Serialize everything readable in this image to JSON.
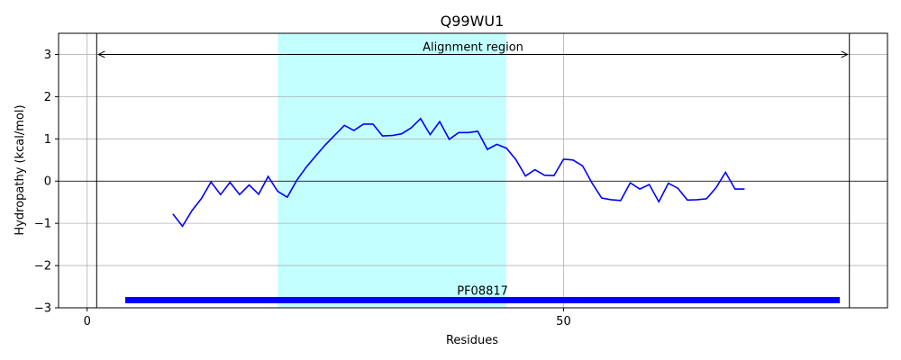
{
  "chart_data": {
    "type": "line",
    "title": "Q99WU1",
    "xlabel": "Residues",
    "ylabel": "Hydropathy (kcal/mol)",
    "xlim": [
      -3,
      84
    ],
    "ylim": [
      -3,
      3.5
    ],
    "x_ticks": [
      0,
      50
    ],
    "y_ticks": [
      -3,
      -2,
      -1,
      0,
      1,
      2,
      3
    ],
    "x_tick_labels": [
      "0",
      "50"
    ],
    "y_tick_labels": [
      "−3",
      "−2",
      "−1",
      "0",
      "1",
      "2",
      "3"
    ],
    "grid": true,
    "colors": {
      "line": "#0000ff",
      "highlight": "#c4ffff",
      "domain": "#0000ff"
    },
    "series": [
      {
        "x": [
          9,
          10,
          11,
          12,
          13,
          14,
          15,
          16,
          17,
          18,
          19,
          20,
          21,
          22,
          23,
          24,
          25,
          26,
          27,
          28,
          29,
          30,
          31,
          32,
          33,
          34,
          35,
          36,
          37,
          38,
          39,
          40,
          41,
          42,
          43,
          44,
          45,
          46,
          47,
          48,
          49,
          50,
          51,
          52,
          53,
          54,
          55,
          56,
          57,
          58,
          59,
          60,
          61,
          62,
          63,
          64,
          65,
          66,
          67,
          68,
          69
        ],
        "y": [
          -0.78,
          -1.07,
          -0.7,
          -0.41,
          -0.02,
          -0.32,
          -0.03,
          -0.32,
          -0.09,
          -0.31,
          0.11,
          -0.24,
          -0.38,
          0.02,
          0.33,
          0.6,
          0.86,
          1.09,
          1.32,
          1.2,
          1.35,
          1.35,
          1.07,
          1.08,
          1.12,
          1.26,
          1.48,
          1.1,
          1.41,
          0.99,
          1.15,
          1.15,
          1.18,
          0.75,
          0.87,
          0.78,
          0.51,
          0.12,
          0.27,
          0.14,
          0.13,
          0.52,
          0.5,
          0.36,
          -0.05,
          -0.4,
          -0.44,
          -0.46,
          -0.04,
          -0.19,
          -0.08,
          -0.49,
          -0.05,
          -0.17,
          -0.45,
          -0.44,
          -0.42,
          -0.16,
          0.21,
          -0.19,
          -0.19
        ]
      }
    ],
    "highlight_region": {
      "x_start": 20,
      "x_end": 44
    },
    "alignment_region": {
      "label": "Alignment region",
      "x_start": 1,
      "x_end": 80,
      "y": 3
    },
    "domain": {
      "label": "PF08817",
      "x_start": 4,
      "x_end": 79,
      "y": -2.82
    }
  }
}
